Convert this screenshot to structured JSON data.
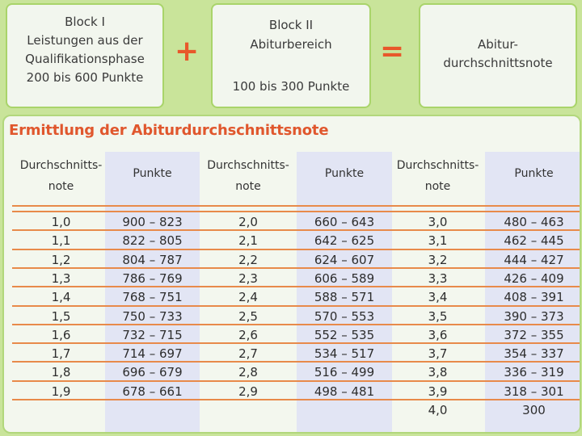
{
  "block1": {
    "lines": [
      "Block I",
      "Leistungen aus der",
      "Qualifikationsphase",
      "200 bis 600 Punkte"
    ]
  },
  "block2": {
    "lines": [
      "Block II",
      "Abiturbereich",
      "100 bis 300 Punkte"
    ]
  },
  "plus_sign": "+",
  "equals_sign": "=",
  "block3": {
    "lines": [
      "Abitur-",
      "durchschnittsnote"
    ]
  },
  "section_title": "Ermittlung der Abiturdurchschnittsnote",
  "columns": [
    {
      "note_header": [
        "Durchschnitts-",
        "note"
      ],
      "points_header": "Punkte"
    },
    {
      "note_header": [
        "Durchschnitts-",
        "note"
      ],
      "points_header": "Punkte"
    },
    {
      "note_header": [
        "Durchschnitts-",
        "note"
      ],
      "points_header": "Punkte"
    }
  ],
  "rows": [
    {
      "col1": [
        "1,0",
        "900 – 823"
      ],
      "col2": [
        "2,0",
        "660 – 643"
      ],
      "col3": [
        "3,0",
        "480 – 463"
      ]
    },
    {
      "col1": [
        "1,1",
        "822 – 805"
      ],
      "col2": [
        "2,1",
        "642 – 625"
      ],
      "col3": [
        "3,1",
        "462 – 445"
      ]
    },
    {
      "col1": [
        "1,2",
        "804 – 787"
      ],
      "col2": [
        "2,2",
        "624 – 607"
      ],
      "col3": [
        "3,2",
        "444 – 427"
      ]
    },
    {
      "col1": [
        "1,3",
        "786 – 769"
      ],
      "col2": [
        "2,3",
        "606 – 589"
      ],
      "col3": [
        "3,3",
        "426 – 409"
      ]
    },
    {
      "col1": [
        "1,4",
        "768 – 751"
      ],
      "col2": [
        "2,4",
        "588 – 571"
      ],
      "col3": [
        "3,4",
        "408 – 391"
      ]
    },
    {
      "col1": [
        "1,5",
        "750 – 733"
      ],
      "col2": [
        "2,5",
        "570 – 553"
      ],
      "col3": [
        "3,5",
        "390 – 373"
      ]
    },
    {
      "col1": [
        "1,6",
        "732 – 715"
      ],
      "col2": [
        "2,6",
        "552 – 535"
      ],
      "col3": [
        "3,6",
        "372 – 355"
      ]
    },
    {
      "col1": [
        "1,7",
        "714 – 697"
      ],
      "col2": [
        "2,7",
        "534 – 517"
      ],
      "col3": [
        "3,7",
        "354 – 337"
      ]
    },
    {
      "col1": [
        "1,8",
        "696 – 679"
      ],
      "col2": [
        "2,8",
        "516 – 499"
      ],
      "col3": [
        "3,8",
        "336 – 319"
      ]
    },
    {
      "col1": [
        "1,9",
        "678 – 661"
      ],
      "col2": [
        "2,9",
        "498 – 481"
      ],
      "col3": [
        "3,9",
        "318 – 301"
      ]
    },
    {
      "col1": [
        "",
        ""
      ],
      "col2": [
        "",
        ""
      ],
      "col3": [
        "4,0",
        "300"
      ]
    }
  ],
  "colors": {
    "accent": "#e0572d",
    "block_border": "#a9d46a",
    "divider": "#e88a4a"
  }
}
